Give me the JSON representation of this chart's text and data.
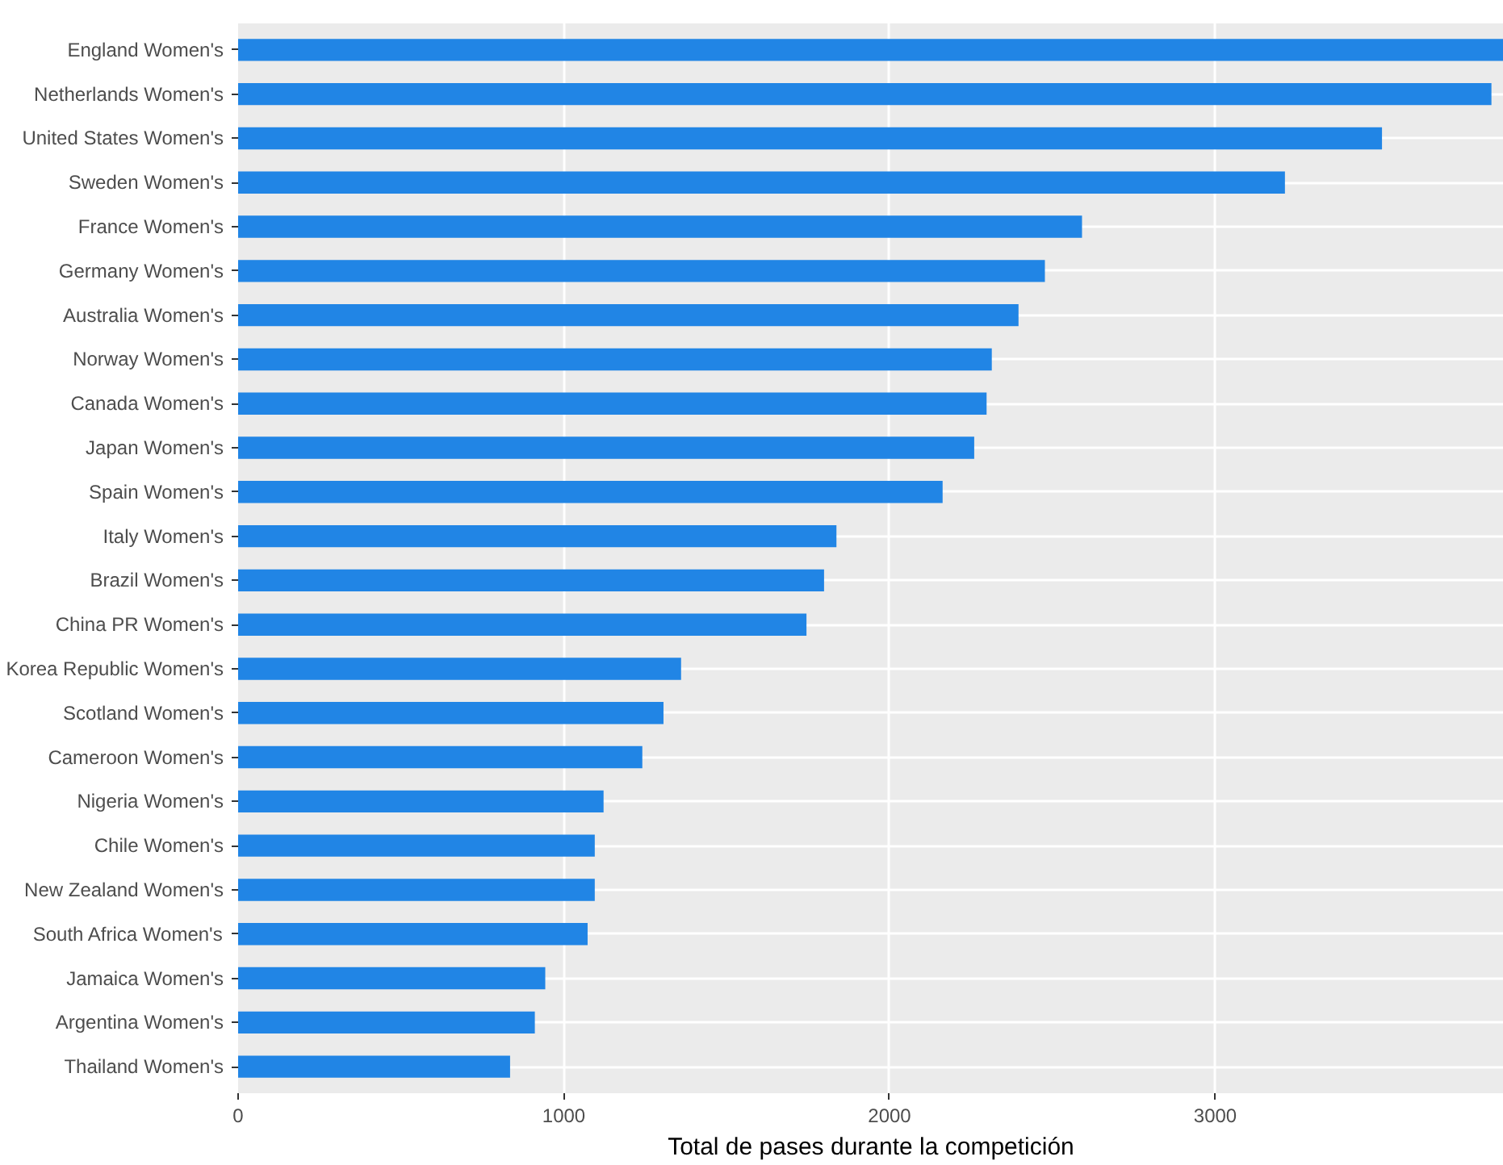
{
  "chart_data": {
    "type": "bar",
    "orientation": "horizontal",
    "xlabel": "Total de pases durante la competición",
    "categories": [
      "England Women's",
      "Netherlands Women's",
      "United States Women's",
      "Sweden Women's",
      "France Women's",
      "Germany Women's",
      "Australia Women's",
      "Norway Women's",
      "Canada Women's",
      "Japan Women's",
      "Spain Women's",
      "Italy Women's",
      "Brazil Women's",
      "China PR Women's",
      "Korea Republic Women's",
      "Scotland Women's",
      "Cameroon Women's",
      "Nigeria Women's",
      "Chile Women's",
      "New Zealand Women's",
      "South Africa Women's",
      "Jamaica Women's",
      "Argentina Women's",
      "Thailand Women's"
    ],
    "values": [
      3886,
      3848,
      3512,
      3214,
      2591,
      2477,
      2396,
      2314,
      2298,
      2260,
      2163,
      1837,
      1799,
      1745,
      1360,
      1306,
      1241,
      1122,
      1095,
      1095,
      1073,
      943,
      911,
      835
    ],
    "color": "#2185e5",
    "xlim": [
      0,
      3886
    ],
    "xticks": [
      0,
      1000,
      2000,
      3000
    ],
    "grid": true
  }
}
